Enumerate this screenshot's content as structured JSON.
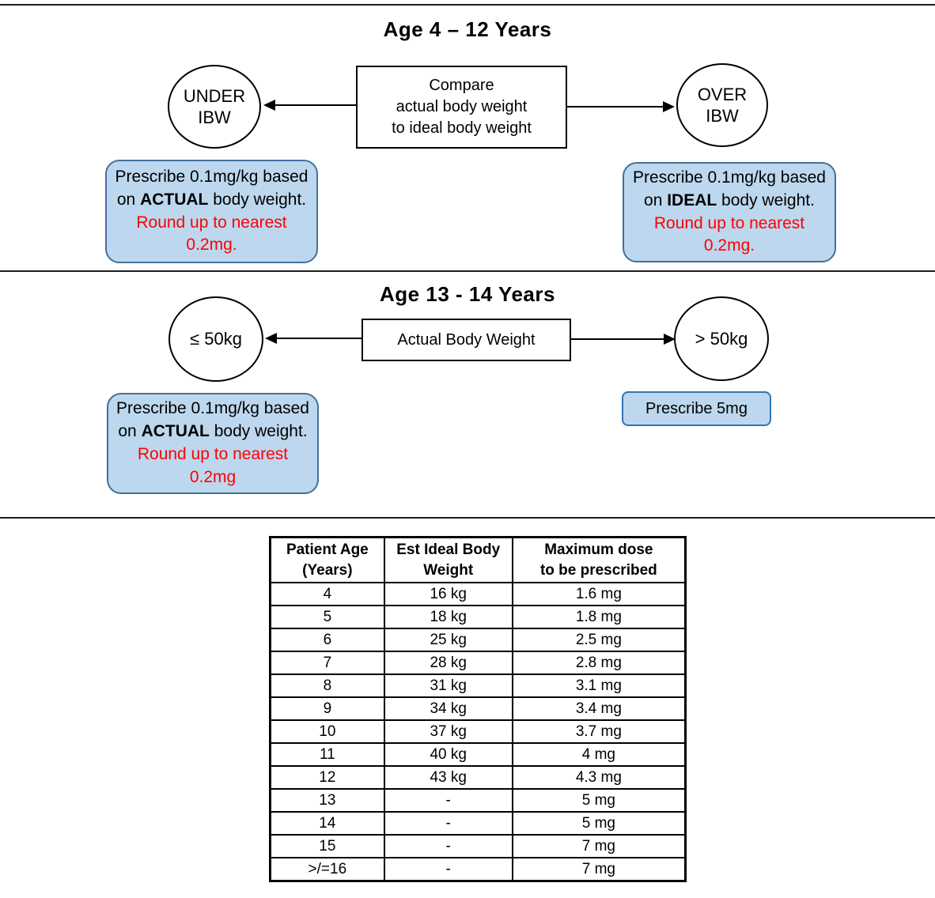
{
  "colors": {
    "box_fill": "#BDD7EE",
    "box_border": "#41719C",
    "small_box_border": "#2E75B6",
    "warning_text": "#FF0000",
    "line": "#000000"
  },
  "section1": {
    "title": "Age 4 – 12 Years",
    "compare_box": "Compare\nactual body weight\nto ideal body weight",
    "under_circle": "UNDER\nIBW",
    "over_circle": "OVER\nIBW",
    "under_box": {
      "text_start": "Prescribe 0.1mg/kg based on ",
      "text_bold": "ACTUAL",
      "text_mid": " body weight. ",
      "text_red": "Round up to nearest 0.2mg."
    },
    "over_box": {
      "text_start": "Prescribe 0.1mg/kg based on ",
      "text_bold": "IDEAL",
      "text_mid": " body weight. ",
      "text_red": "Round up to nearest 0.2mg."
    }
  },
  "section2": {
    "title": "Age 13 - 14 Years",
    "weight_box": "Actual Body Weight",
    "under_circle": "≤ 50kg",
    "over_circle": "> 50kg",
    "under_box": {
      "text_start": "Prescribe 0.1mg/kg based on ",
      "text_bold": "ACTUAL",
      "text_mid": " body weight. ",
      "text_red": "Round up to nearest 0.2mg"
    },
    "over_box": "Prescribe 5mg"
  },
  "table": {
    "headers": [
      "Patient Age\n(Years)",
      "Est Ideal Body\nWeight",
      "Maximum dose\nto be prescribed"
    ],
    "rows": [
      [
        "4",
        "16 kg",
        "1.6 mg"
      ],
      [
        "5",
        "18 kg",
        "1.8 mg"
      ],
      [
        "6",
        "25 kg",
        "2.5 mg"
      ],
      [
        "7",
        "28 kg",
        "2.8 mg"
      ],
      [
        "8",
        "31 kg",
        "3.1 mg"
      ],
      [
        "9",
        "34 kg",
        "3.4 mg"
      ],
      [
        "10",
        "37 kg",
        "3.7 mg"
      ],
      [
        "11",
        "40 kg",
        "4 mg"
      ],
      [
        "12",
        "43 kg",
        "4.3 mg"
      ],
      [
        "13",
        "-",
        "5 mg"
      ],
      [
        "14",
        "-",
        "5 mg"
      ],
      [
        "15",
        "-",
        "7 mg"
      ],
      [
        ">/=16",
        "-",
        "7 mg"
      ]
    ]
  }
}
